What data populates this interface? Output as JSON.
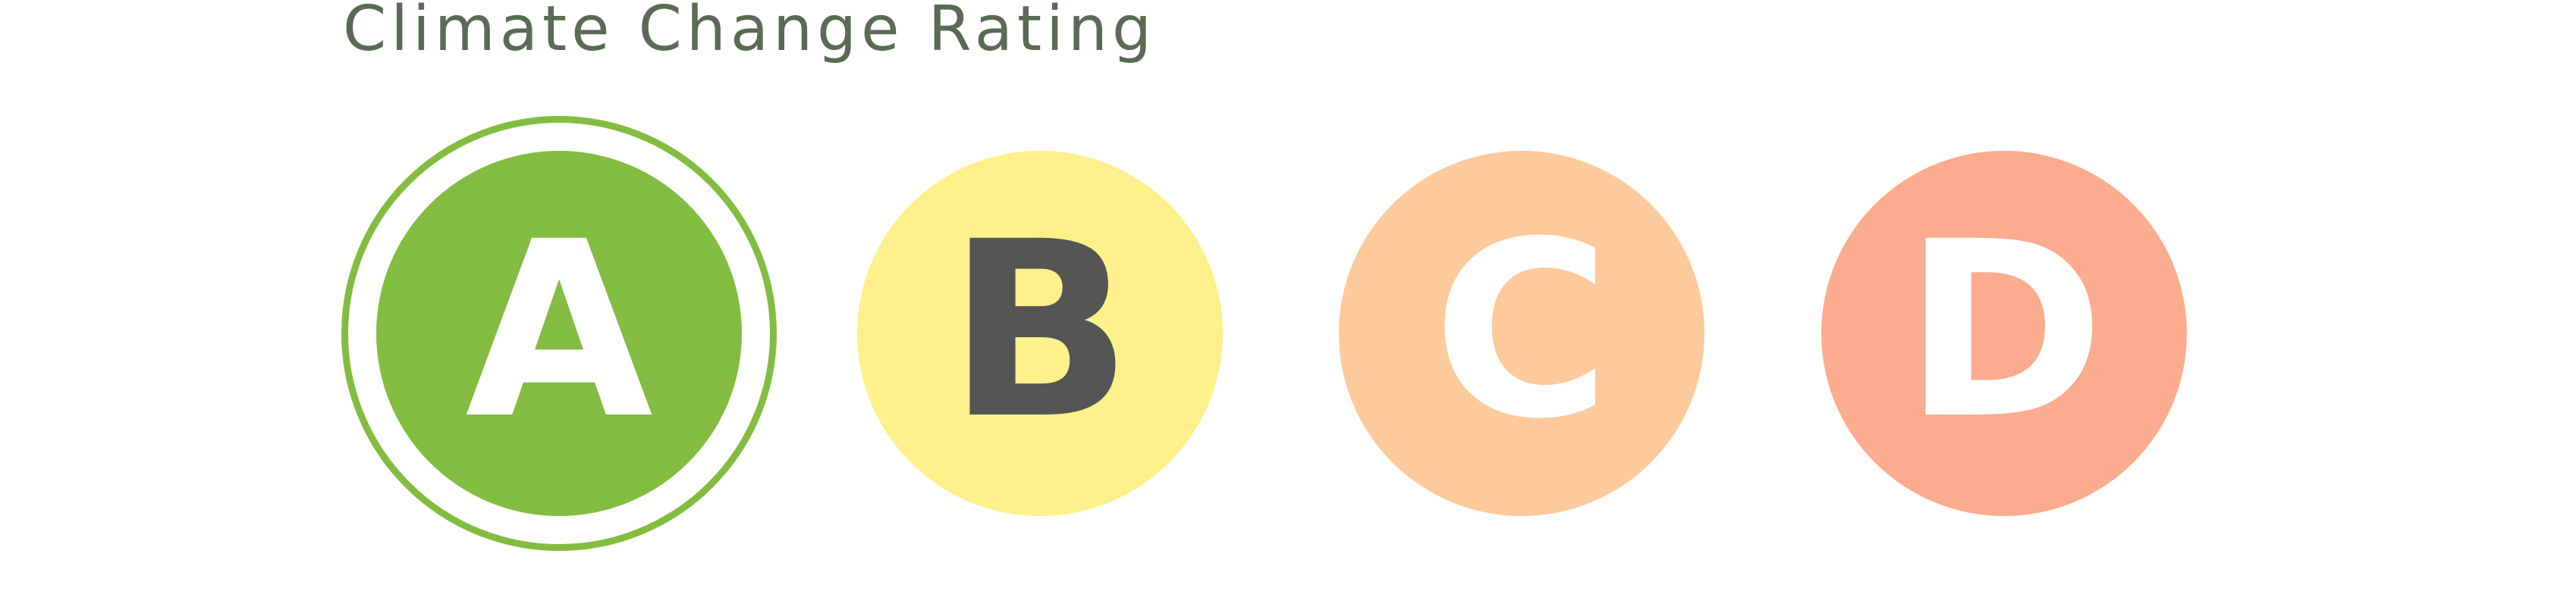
{
  "title": "Climate Change Rating",
  "colors": {
    "title_text": "#5a6b55",
    "ring_border": "#82bd41"
  },
  "ratings": [
    {
      "letter": "A",
      "selected": true,
      "bg_color": "#82bd41",
      "text_color": "#ffffff"
    },
    {
      "letter": "B",
      "selected": false,
      "bg_color": "#fef08a",
      "text_color": "#555555"
    },
    {
      "letter": "C",
      "selected": false,
      "bg_color": "#fdca9b",
      "text_color": "#ffffff"
    },
    {
      "letter": "D",
      "selected": false,
      "bg_color": "#fcac8e",
      "text_color": "#ffffff"
    }
  ]
}
